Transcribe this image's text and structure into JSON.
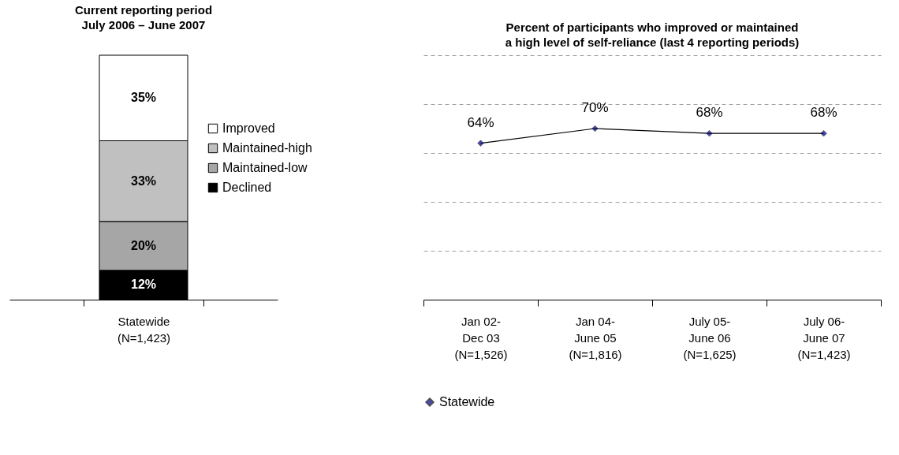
{
  "chart_data": [
    {
      "type": "bar",
      "title": "Current reporting period\nJuly 2006 – June 2007",
      "categories": [
        "Statewide\n(N=1,423)"
      ],
      "stacked": true,
      "ylim": [
        0,
        100
      ],
      "tick_labels": "x",
      "legend": "right",
      "series": [
        {
          "name": "Declined",
          "color": "#000000",
          "values": [
            12
          ],
          "value_labels": [
            "12%"
          ]
        },
        {
          "name": "Maintained-low",
          "color": "#a6a6a6",
          "values": [
            20
          ],
          "value_labels": [
            "20%"
          ]
        },
        {
          "name": "Maintained-high",
          "color": "#c0c0c0",
          "values": [
            33
          ],
          "value_labels": [
            "33%"
          ]
        },
        {
          "name": "Improved",
          "color": "#ffffff",
          "values": [
            35
          ],
          "value_labels": [
            "35%"
          ]
        }
      ]
    },
    {
      "type": "line",
      "title": "Percent of participants who improved or maintained\na high level of self-reliance (last 4 reporting periods)",
      "categories": [
        "Jan 02-\nDec 03\n(N=1,526)",
        "Jan 04-\nJune 05\n(N=1,816)",
        "July 05-\nJune 06\n(N=1,625)",
        "July 06-\nJune 07\n(N=1,423)"
      ],
      "ylim": [
        0,
        100
      ],
      "yticks": [
        {
          "value": 0,
          "label": null
        },
        {
          "value": 20,
          "label": null
        },
        {
          "value": 40,
          "label": null
        },
        {
          "value": 60,
          "label": null
        },
        {
          "value": 80,
          "label": null
        },
        {
          "value": 100,
          "label": null
        }
      ],
      "grid": "y",
      "tick_labels": "x",
      "legend": "bottom",
      "marker": "diamond",
      "line_style": "solid",
      "series": [
        {
          "name": "Statewide",
          "color": "#000080",
          "values": [
            64,
            70,
            68,
            68
          ],
          "value_labels": [
            "64%",
            "70%",
            "68%",
            "68%"
          ]
        }
      ]
    }
  ]
}
